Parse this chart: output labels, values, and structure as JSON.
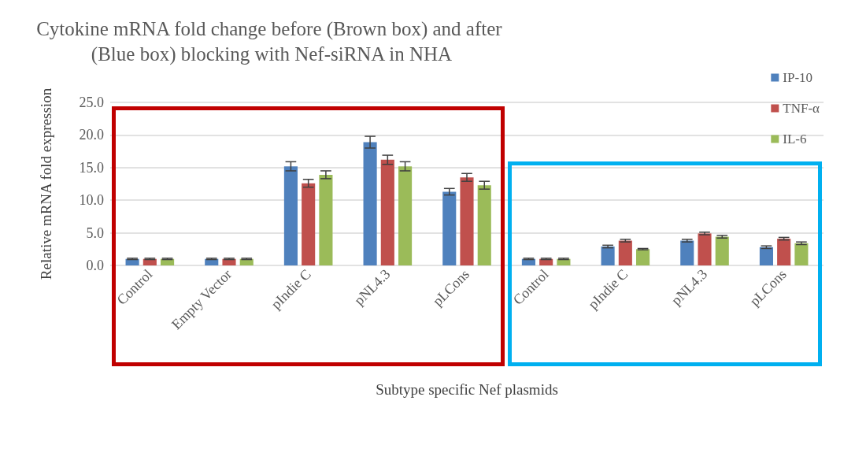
{
  "chart_data": {
    "type": "bar",
    "title": "Cytokine mRNA fold change before (Brown box) and after (Blue box) blocking with Nef-siRNA in NHA",
    "xlabel": "Subtype specific Nef plasmids",
    "ylabel": "Relative mRNA fold expression",
    "categories": [
      "Control",
      "Empty Vector",
      "pIndie C",
      "pNL4.3",
      "pLCons",
      "Control",
      "pIndie C",
      "pNL4.3",
      "pLCons"
    ],
    "series": [
      {
        "name": "IP-10",
        "color": "#4f81bd",
        "values": [
          1.0,
          1.0,
          15.2,
          18.9,
          11.3,
          1.0,
          2.9,
          3.8,
          2.8
        ],
        "errors": [
          0.1,
          0.1,
          0.7,
          0.9,
          0.5,
          0.1,
          0.2,
          0.2,
          0.2
        ]
      },
      {
        "name": "TNF-α",
        "color": "#c0504d",
        "values": [
          1.0,
          1.0,
          12.6,
          16.2,
          13.5,
          1.0,
          3.8,
          4.9,
          4.1
        ],
        "errors": [
          0.1,
          0.1,
          0.6,
          0.7,
          0.6,
          0.1,
          0.2,
          0.2,
          0.2
        ]
      },
      {
        "name": "IL-6",
        "color": "#9bbb59",
        "values": [
          1.0,
          1.0,
          13.9,
          15.2,
          12.3,
          1.0,
          2.5,
          4.4,
          3.4
        ],
        "errors": [
          0.1,
          0.1,
          0.6,
          0.7,
          0.6,
          0.1,
          0.1,
          0.2,
          0.2
        ]
      }
    ],
    "ylim": [
      0,
      25
    ],
    "yticks": [
      {
        "value": 0,
        "label": "0.0"
      },
      {
        "value": 5,
        "label": "5.0"
      },
      {
        "value": 10,
        "label": "10.0"
      },
      {
        "value": 15,
        "label": "15.0"
      },
      {
        "value": 20,
        "label": "20.0"
      },
      {
        "value": 25,
        "label": "25.0"
      }
    ],
    "grid": "y",
    "legend": "top right"
  }
}
